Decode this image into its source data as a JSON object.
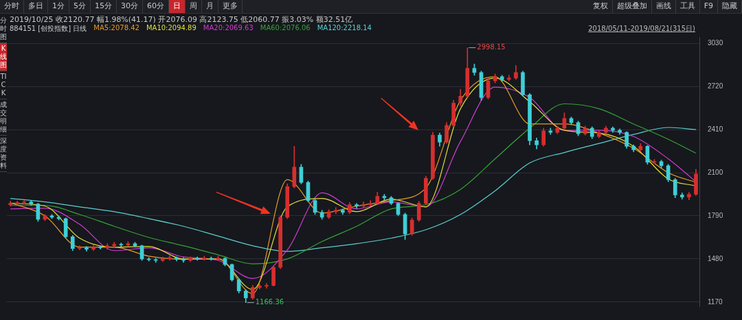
{
  "chart_data": {
    "type": "candlestick",
    "title": "2019/10/25 收2120.77 幅1.98%(41.17) 开2076.09 高2123.75 低2060.77 振3.03% 额32.51亿",
    "subtitle": "884151 [创投指数] 日线",
    "annotations": [
      "分时",
      "多日",
      "1分",
      "5分",
      "15分",
      "30分",
      "60分",
      "日",
      "周",
      "月",
      "更多",
      "复权",
      "超级叠加",
      "画线",
      "工具",
      "F9",
      "隐藏",
      "分时图",
      "K线图",
      "TICK",
      "成交明细",
      "深度资料",
      "2018/05/11-2019/08/21(315日)",
      "2998.15",
      "1166.36"
    ],
    "categories": [
      null,
      null,
      null,
      null,
      null,
      null,
      null,
      null,
      null,
      null,
      null,
      null,
      null,
      null,
      null,
      null,
      null,
      null,
      null,
      null,
      null,
      null,
      null,
      null,
      null,
      null,
      null,
      null,
      null,
      null,
      null,
      null,
      null,
      null,
      null,
      null,
      null,
      null,
      null,
      null,
      null,
      null,
      null,
      null,
      null,
      null,
      null,
      null,
      null,
      null,
      null,
      null,
      null,
      null,
      null,
      null,
      null,
      null,
      null,
      null,
      null,
      null,
      null,
      null,
      null,
      null,
      null,
      null,
      null,
      null,
      null,
      null,
      null,
      null,
      null,
      null,
      null,
      null,
      null,
      null,
      null,
      null,
      null,
      null,
      null,
      null,
      null,
      null,
      null,
      null,
      null,
      null,
      null,
      null,
      null,
      null,
      null,
      null,
      null,
      null
    ],
    "ohlc": [
      [
        1870,
        1895,
        1860,
        1880
      ],
      [
        1880,
        1895,
        1870,
        1885
      ],
      [
        1885,
        1900,
        1875,
        1890
      ],
      [
        1890,
        1900,
        1865,
        1875
      ],
      [
        1875,
        1880,
        1750,
        1765
      ],
      [
        1765,
        1800,
        1755,
        1790
      ],
      [
        1790,
        1800,
        1770,
        1780
      ],
      [
        1780,
        1790,
        1760,
        1770
      ],
      [
        1770,
        1775,
        1630,
        1640
      ],
      [
        1640,
        1650,
        1540,
        1555
      ],
      [
        1555,
        1575,
        1545,
        1560
      ],
      [
        1560,
        1570,
        1535,
        1550
      ],
      [
        1550,
        1580,
        1540,
        1565
      ],
      [
        1565,
        1575,
        1550,
        1560
      ],
      [
        1560,
        1590,
        1550,
        1575
      ],
      [
        1575,
        1600,
        1565,
        1585
      ],
      [
        1585,
        1595,
        1570,
        1580
      ],
      [
        1580,
        1605,
        1570,
        1590
      ],
      [
        1590,
        1600,
        1565,
        1575
      ],
      [
        1575,
        1580,
        1470,
        1480
      ],
      [
        1480,
        1490,
        1465,
        1475
      ],
      [
        1475,
        1485,
        1455,
        1470
      ],
      [
        1470,
        1495,
        1460,
        1480
      ],
      [
        1480,
        1505,
        1470,
        1490
      ],
      [
        1490,
        1495,
        1465,
        1480
      ],
      [
        1480,
        1490,
        1455,
        1470
      ],
      [
        1470,
        1495,
        1460,
        1485
      ],
      [
        1485,
        1495,
        1470,
        1480
      ],
      [
        1480,
        1500,
        1470,
        1485
      ],
      [
        1485,
        1495,
        1470,
        1480
      ],
      [
        1480,
        1500,
        1470,
        1485
      ],
      [
        1485,
        1490,
        1430,
        1440
      ],
      [
        1440,
        1445,
        1320,
        1330
      ],
      [
        1330,
        1340,
        1235,
        1250
      ],
      [
        1250,
        1260,
        1166.36,
        1200
      ],
      [
        1200,
        1290,
        1190,
        1275
      ],
      [
        1275,
        1300,
        1265,
        1285
      ],
      [
        1285,
        1305,
        1270,
        1290
      ],
      [
        1290,
        1430,
        1285,
        1420
      ],
      [
        1420,
        1790,
        1410,
        1780
      ],
      [
        1780,
        2020,
        1770,
        2000
      ],
      [
        2000,
        2290,
        1990,
        2140
      ],
      [
        2140,
        2160,
        2020,
        2030
      ],
      [
        2030,
        2040,
        1890,
        1900
      ],
      [
        1900,
        1910,
        1800,
        1815
      ],
      [
        1815,
        1830,
        1765,
        1780
      ],
      [
        1780,
        1835,
        1770,
        1820
      ],
      [
        1820,
        1850,
        1805,
        1830
      ],
      [
        1830,
        1840,
        1800,
        1815
      ],
      [
        1815,
        1885,
        1805,
        1870
      ],
      [
        1870,
        1880,
        1845,
        1860
      ],
      [
        1860,
        1890,
        1850,
        1870
      ],
      [
        1870,
        1900,
        1860,
        1880
      ],
      [
        1880,
        1960,
        1870,
        1930
      ],
      [
        1930,
        1945,
        1905,
        1920
      ],
      [
        1920,
        1930,
        1870,
        1880
      ],
      [
        1880,
        1885,
        1790,
        1800
      ],
      [
        1800,
        1810,
        1620,
        1660
      ],
      [
        1660,
        1775,
        1650,
        1760
      ],
      [
        1760,
        1895,
        1750,
        1880
      ],
      [
        1880,
        2075,
        1870,
        2060
      ],
      [
        2060,
        2390,
        2050,
        2370
      ],
      [
        2370,
        2385,
        2290,
        2320
      ],
      [
        2320,
        2460,
        2310,
        2440
      ],
      [
        2440,
        2620,
        2430,
        2600
      ],
      [
        2600,
        2700,
        2580,
        2650
      ],
      [
        2650,
        2998.15,
        2640,
        2850
      ],
      [
        2850,
        2880,
        2800,
        2820
      ],
      [
        2820,
        2830,
        2620,
        2640
      ],
      [
        2640,
        2780,
        2630,
        2760
      ],
      [
        2760,
        2810,
        2745,
        2790
      ],
      [
        2790,
        2800,
        2755,
        2770
      ],
      [
        2770,
        2800,
        2760,
        2780
      ],
      [
        2780,
        2870,
        2770,
        2820
      ],
      [
        2820,
        2830,
        2650,
        2660
      ],
      [
        2660,
        2670,
        2300,
        2330
      ],
      [
        2330,
        2350,
        2270,
        2300
      ],
      [
        2300,
        2420,
        2290,
        2400
      ],
      [
        2400,
        2420,
        2375,
        2390
      ],
      [
        2390,
        2435,
        2380,
        2420
      ],
      [
        2420,
        2530,
        2410,
        2490
      ],
      [
        2490,
        2500,
        2445,
        2460
      ],
      [
        2460,
        2470,
        2365,
        2380
      ],
      [
        2380,
        2435,
        2370,
        2420
      ],
      [
        2420,
        2430,
        2345,
        2360
      ],
      [
        2360,
        2400,
        2350,
        2390
      ],
      [
        2390,
        2435,
        2380,
        2420
      ],
      [
        2420,
        2430,
        2390,
        2405
      ],
      [
        2405,
        2415,
        2375,
        2390
      ],
      [
        2390,
        2395,
        2275,
        2290
      ],
      [
        2290,
        2300,
        2250,
        2265
      ],
      [
        2265,
        2310,
        2255,
        2290
      ],
      [
        2290,
        2295,
        2160,
        2175
      ],
      [
        2175,
        2195,
        2165,
        2180
      ],
      [
        2180,
        2190,
        2135,
        2150
      ],
      [
        2150,
        2160,
        2035,
        2050
      ],
      [
        2050,
        2060,
        1920,
        1940
      ],
      [
        1940,
        1955,
        1910,
        1925
      ],
      [
        1925,
        1960,
        1905,
        1945
      ],
      [
        1945,
        2123.75,
        1935,
        2090
      ]
    ],
    "colors": [
      "#d62f2f",
      "#d62f2f",
      "#d62f2f",
      "#3fcfd6",
      "#3fcfd6",
      "#d62f2f",
      "#3fcfd6",
      "#3fcfd6",
      "#3fcfd6",
      "#3fcfd6",
      "#d62f2f",
      "#3fcfd6",
      "#d62f2f",
      "#3fcfd6",
      "#d62f2f",
      "#d62f2f",
      "#3fcfd6",
      "#d62f2f",
      "#3fcfd6",
      "#3fcfd6",
      "#3fcfd6",
      "#3fcfd6",
      "#d62f2f",
      "#d62f2f",
      "#3fcfd6",
      "#3fcfd6",
      "#d62f2f",
      "#3fcfd6",
      "#d62f2f",
      "#3fcfd6",
      "#d62f2f",
      "#3fcfd6",
      "#3fcfd6",
      "#3fcfd6",
      "#3fcfd6",
      "#d62f2f",
      "#d62f2f",
      "#d62f2f",
      "#d62f2f",
      "#d62f2f",
      "#d62f2f",
      "#d62f2f",
      "#3fcfd6",
      "#3fcfd6",
      "#3fcfd6",
      "#3fcfd6",
      "#d62f2f",
      "#d62f2f",
      "#3fcfd6",
      "#d62f2f",
      "#3fcfd6",
      "#d62f2f",
      "#d62f2f",
      "#d62f2f",
      "#3fcfd6",
      "#3fcfd6",
      "#3fcfd6",
      "#3fcfd6",
      "#d62f2f",
      "#d62f2f",
      "#d62f2f",
      "#d62f2f",
      "#3fcfd6",
      "#d62f2f",
      "#d62f2f",
      "#d62f2f",
      "#d62f2f",
      "#3fcfd6",
      "#3fcfd6",
      "#d62f2f",
      "#d62f2f",
      "#3fcfd6",
      "#d62f2f",
      "#d62f2f",
      "#3fcfd6",
      "#3fcfd6",
      "#3fcfd6",
      "#d62f2f",
      "#3fcfd6",
      "#d62f2f",
      "#d62f2f",
      "#3fcfd6",
      "#3fcfd6",
      "#d62f2f",
      "#3fcfd6",
      "#d62f2f",
      "#d62f2f",
      "#3fcfd6",
      "#3fcfd6",
      "#3fcfd6",
      "#3fcfd6",
      "#d62f2f",
      "#3fcfd6",
      "#d62f2f",
      "#3fcfd6",
      "#3fcfd6",
      "#3fcfd6",
      "#3fcfd6",
      "#d62f2f",
      "#d62f2f"
    ],
    "series": [
      {
        "name": "MA5:2078.42",
        "type": "line",
        "color": "#e89a2c",
        "values": [
          1885,
          null,
          null,
          null,
          null,
          1790,
          null,
          null,
          null,
          null,
          1565,
          null,
          null,
          null,
          null,
          1565,
          null,
          null,
          null,
          null,
          1500,
          null,
          null,
          null,
          null,
          1478,
          null,
          null,
          null,
          null,
          1483,
          null,
          null,
          null,
          null,
          1230,
          null,
          null,
          null,
          null,
          2050,
          null,
          null,
          null,
          null,
          1810,
          null,
          null,
          null,
          null,
          1860,
          null,
          null,
          null,
          null,
          1900,
          null,
          null,
          null,
          null,
          1990,
          null,
          null,
          null,
          null,
          2620,
          null,
          null,
          null,
          null,
          2790,
          null,
          null,
          null,
          null,
          2450,
          null,
          null,
          null,
          null,
          2450,
          null,
          null,
          null,
          null,
          2385,
          null,
          null,
          null,
          null,
          2275,
          null,
          null,
          null,
          null,
          2100,
          null,
          null,
          null,
          2030
        ]
      },
      {
        "name": "MA10:2094.89",
        "type": "line",
        "color": "#e3df3a",
        "values": [
          1880,
          null,
          null,
          null,
          null,
          1860,
          null,
          null,
          null,
          null,
          1630,
          null,
          null,
          null,
          null,
          1565,
          null,
          null,
          null,
          null,
          1570,
          null,
          null,
          null,
          null,
          1480,
          null,
          null,
          null,
          null,
          1480,
          null,
          null,
          null,
          null,
          1260,
          null,
          null,
          null,
          null,
          1855,
          null,
          null,
          null,
          null,
          1915,
          null,
          null,
          null,
          null,
          1820,
          null,
          null,
          null,
          null,
          1910,
          null,
          null,
          null,
          null,
          1855,
          null,
          null,
          null,
          null,
          2560,
          null,
          null,
          null,
          null,
          2780,
          null,
          null,
          null,
          null,
          2610,
          null,
          null,
          null,
          null,
          2405,
          null,
          null,
          null,
          null,
          2385,
          null,
          null,
          null,
          null,
          2290,
          null,
          null,
          null,
          null,
          2055,
          null,
          null,
          null,
          2005
        ]
      },
      {
        "name": "MA20:2069.63",
        "type": "line",
        "color": "#d23ad2",
        "values": [
          1840,
          null,
          null,
          null,
          null,
          1845,
          null,
          null,
          null,
          null,
          1730,
          null,
          null,
          null,
          null,
          1540,
          null,
          null,
          null,
          null,
          1560,
          null,
          null,
          null,
          null,
          1495,
          null,
          null,
          null,
          null,
          1470,
          null,
          null,
          null,
          null,
          1340,
          null,
          null,
          null,
          null,
          1545,
          null,
          null,
          null,
          null,
          1955,
          null,
          null,
          null,
          null,
          1840,
          null,
          null,
          null,
          null,
          1890,
          null,
          null,
          null,
          null,
          1855,
          null,
          null,
          null,
          null,
          2325,
          null,
          null,
          null,
          null,
          2715,
          null,
          null,
          null,
          null,
          2640,
          null,
          null,
          null,
          null,
          2405,
          null,
          null,
          null,
          null,
          2405,
          null,
          null,
          null,
          null,
          2360,
          null,
          null,
          null,
          null,
          2200,
          null,
          null,
          null,
          2035
        ]
      },
      {
        "name": "MA60:2076.06",
        "type": "line",
        "color": "#36a336",
        "values": [
          1865,
          null,
          null,
          null,
          null,
          1865,
          null,
          null,
          null,
          null,
          1800,
          null,
          null,
          null,
          null,
          1715,
          null,
          null,
          null,
          null,
          1635,
          null,
          null,
          null,
          null,
          1575,
          null,
          null,
          null,
          null,
          1510,
          null,
          null,
          null,
          null,
          1445,
          null,
          null,
          null,
          null,
          1480,
          null,
          null,
          null,
          null,
          1605,
          null,
          null,
          null,
          null,
          1715,
          null,
          null,
          null,
          null,
          1840,
          null,
          null,
          null,
          null,
          1870,
          null,
          null,
          null,
          null,
          1980,
          null,
          null,
          null,
          null,
          2200,
          null,
          null,
          null,
          null,
          2420,
          null,
          null,
          null,
          null,
          2595,
          null,
          null,
          null,
          null,
          2560,
          null,
          null,
          null,
          null,
          2450,
          null,
          null,
          null,
          null,
          2340,
          null,
          null,
          null,
          2240
        ]
      },
      {
        "name": "MA120:2218.14",
        "type": "line",
        "color": "#5ccfd0",
        "values": [
          1915,
          null,
          null,
          null,
          null,
          1890,
          null,
          null,
          null,
          null,
          1855,
          null,
          null,
          null,
          null,
          1820,
          null,
          null,
          null,
          null,
          1770,
          null,
          null,
          null,
          null,
          1715,
          null,
          null,
          null,
          null,
          1645,
          null,
          null,
          null,
          null,
          1575,
          null,
          null,
          null,
          null,
          1535,
          null,
          null,
          null,
          null,
          1560,
          null,
          null,
          null,
          null,
          1590,
          null,
          null,
          null,
          null,
          1630,
          null,
          null,
          null,
          null,
          1690,
          null,
          null,
          null,
          null,
          1800,
          null,
          null,
          null,
          null,
          1970,
          null,
          null,
          null,
          null,
          2170,
          null,
          null,
          null,
          null,
          2245,
          null,
          null,
          null,
          null,
          2310,
          null,
          null,
          null,
          null,
          2375,
          null,
          null,
          null,
          null,
          2425,
          null,
          null,
          null,
          2410
        ]
      }
    ],
    "ylim": [
      1140,
      3075
    ],
    "yticks": [
      1170,
      1480,
      1790,
      2100,
      2410,
      2720,
      3030
    ],
    "grid": "y",
    "legend": "top left",
    "tick_labels": "y",
    "marker": "none"
  }
}
